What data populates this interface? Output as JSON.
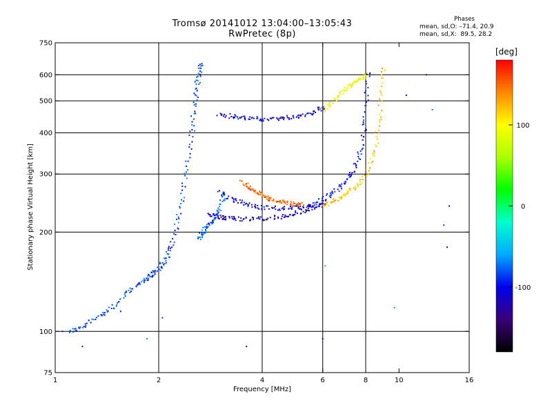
{
  "header": {
    "title_line1": "Tromsø 20141012 13:04:00–13:05:43",
    "title_line2": "RwPretec (8p)",
    "phases_title": "Phases",
    "phases_line1": "mean, sd,O: –71.4, 20.9",
    "phases_line2": "mean, sd,X:  89.5, 28.2"
  },
  "colorbar": {
    "label": "[deg]",
    "ticks": [
      "100",
      "0",
      "-100"
    ],
    "tick_values": [
      100,
      0,
      -100
    ],
    "range": [
      -180,
      180
    ],
    "colors": [
      "#000000",
      "#3a0077",
      "#0000ee",
      "#00aaff",
      "#00ffcc",
      "#00ff00",
      "#aaff00",
      "#ffff00",
      "#ff8800",
      "#ff0000"
    ]
  },
  "chart_data": {
    "type": "scatter",
    "title": "Tromsø 20141012 13:04:00–13:05:43",
    "subtitle": "RwPretec (8p)",
    "xlabel": "Frequency [MHz]",
    "ylabel": "Stationary phase Virtual Height [km]",
    "xscale": "log",
    "yscale": "log",
    "xlim": [
      1,
      16
    ],
    "ylim": [
      75,
      750
    ],
    "x_ticks": [
      1,
      2,
      4,
      6,
      8,
      10,
      16
    ],
    "x_tick_labels": [
      "1",
      "2",
      "4",
      "6",
      "8",
      "10",
      "16"
    ],
    "y_ticks": [
      75,
      100,
      200,
      300,
      400,
      500,
      600,
      750
    ],
    "y_tick_labels": [
      "75",
      "100",
      "200",
      "300",
      "400",
      "500",
      "600",
      "750"
    ],
    "grid_x": [
      2,
      4,
      6,
      8
    ],
    "grid_y": [
      100,
      200,
      300,
      400,
      500,
      600
    ],
    "color_scale": "phase [deg]",
    "series": [
      {
        "kind": "F1 O-mode rising cusp",
        "phase": -85,
        "x": [
          1.1,
          1.2,
          1.35,
          1.5,
          1.65,
          1.8,
          1.9,
          2.0,
          2.1,
          2.2,
          2.3,
          2.4,
          2.5,
          2.55,
          2.6,
          2.65
        ],
        "y": [
          100,
          103,
          112,
          120,
          133,
          142,
          148,
          155,
          165,
          185,
          230,
          300,
          400,
          500,
          580,
          640
        ]
      },
      {
        "kind": "F1 X-mode branch",
        "phase": -75,
        "x": [
          2.6,
          2.7,
          2.8,
          2.9,
          3.0,
          3.1
        ],
        "y": [
          190,
          200,
          210,
          220,
          232,
          260
        ]
      },
      {
        "kind": "F2 upper trace",
        "phase": -105,
        "x": [
          3.0,
          3.3,
          3.6,
          4.0,
          4.5,
          5.0,
          5.5,
          6.0
        ],
        "y": [
          455,
          448,
          443,
          440,
          442,
          448,
          458,
          475
        ]
      },
      {
        "kind": "F2 lower trace",
        "phase": -115,
        "x": [
          2.8,
          3.0,
          3.2,
          3.5,
          4.0,
          4.5,
          5.0,
          5.5,
          6.0
        ],
        "y": [
          225,
          222,
          220,
          219,
          220,
          222,
          228,
          235,
          242
        ]
      },
      {
        "kind": "F2 middle trace",
        "phase": -105,
        "x": [
          3.0,
          3.3,
          3.6,
          4.0,
          4.5,
          5.0,
          5.5
        ],
        "y": [
          265,
          250,
          243,
          237,
          236,
          237,
          240
        ]
      },
      {
        "kind": "F2 X-mode arc",
        "phase": 150,
        "x": [
          3.5,
          3.7,
          3.9,
          4.1,
          4.3,
          4.6,
          4.9,
          5.2
        ],
        "y": [
          285,
          270,
          262,
          255,
          250,
          246,
          244,
          242
        ]
      },
      {
        "kind": "O-mode cusp to 8 MHz",
        "phase": -100,
        "x": [
          5.5,
          6.0,
          6.5,
          7.0,
          7.4,
          7.8,
          8.0,
          8.1
        ],
        "y": [
          240,
          250,
          265,
          285,
          310,
          360,
          450,
          600
        ]
      },
      {
        "kind": "X-mode cusp to 9 MHz",
        "phase": 120,
        "x": [
          6.0,
          6.5,
          7.0,
          7.5,
          8.0,
          8.5,
          8.8,
          9.0
        ],
        "y": [
          240,
          250,
          262,
          275,
          300,
          350,
          450,
          620
        ]
      },
      {
        "kind": "upper returning trace",
        "phase": 95,
        "x": [
          6.0,
          6.4,
          6.8,
          7.2,
          7.6,
          8.0
        ],
        "y": [
          470,
          500,
          530,
          555,
          575,
          600
        ]
      },
      {
        "kind": "scattered points",
        "phase": -90,
        "x": [
          1.05,
          1.2,
          1.55,
          1.85,
          2.05,
          3.6,
          6.0,
          6.1,
          9.7,
          10.5,
          12.0,
          12.5,
          13.5,
          13.8,
          14.0
        ],
        "y": [
          100,
          90,
          115,
          95,
          110,
          90,
          95,
          158,
          118,
          520,
          600,
          470,
          210,
          180,
          240
        ]
      }
    ]
  }
}
